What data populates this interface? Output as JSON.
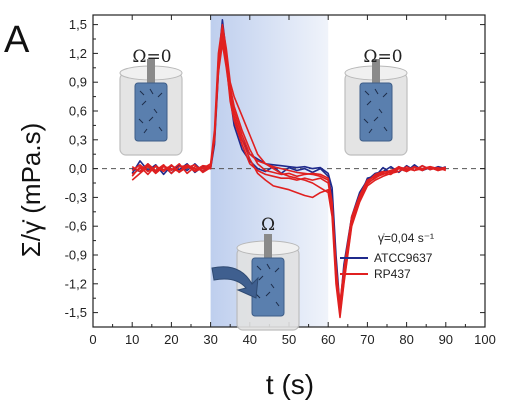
{
  "panel_letter": "A",
  "annotations": {
    "omega_zero_left": "Ω=0",
    "omega_zero_right": "Ω=0",
    "omega_middle": "Ω",
    "shear_rate": "γ̇=0,04 s⁻¹"
  },
  "colors": {
    "ATCC9637": "#1f2a8c",
    "RP437": "#e02020",
    "shaded_band": "#c9d6f0",
    "cylinder_fill": "#d8d8d8",
    "bob_fill": "#5a7fae",
    "arrow": "#3f5f8f"
  },
  "chart_data": {
    "type": "line",
    "xlabel": "t (s)",
    "ylabel": "Σ/γ̇ (mPa.s)",
    "xlim": [
      0,
      100
    ],
    "ylim": [
      -1.65,
      1.6
    ],
    "xticks": [
      0,
      10,
      20,
      30,
      40,
      50,
      60,
      70,
      80,
      90,
      100
    ],
    "xtick_labels": [
      "0",
      "10",
      "20",
      "30",
      "40",
      "50",
      "60",
      "70",
      "80",
      "90",
      "100"
    ],
    "yticks": [
      1.5,
      1.2,
      0.9,
      0.6,
      0.3,
      0.0,
      -0.3,
      -0.6,
      -0.9,
      -1.2,
      -1.5
    ],
    "ytick_labels": [
      "1,5",
      "1,2",
      "0,9",
      "0,6",
      "0,3",
      "0,0",
      "-0,3",
      "-0,6",
      "-0,9",
      "-1,2",
      "-1,5"
    ],
    "shaded_interval": [
      30,
      60
    ],
    "zero_line": true,
    "legend_position": "lower-right",
    "series": [
      {
        "name": "ATCC9637",
        "color": "#1f2a8c",
        "x": [
          10,
          12,
          14,
          16,
          18,
          20,
          22,
          24,
          26,
          28,
          30,
          31,
          32,
          33,
          34,
          35,
          36,
          38,
          40,
          42,
          44,
          46,
          48,
          50,
          52,
          54,
          56,
          58,
          60,
          61,
          62,
          63,
          64,
          66,
          68,
          70,
          72,
          74,
          76,
          78,
          80,
          82,
          84,
          86,
          88,
          90
        ],
        "y": [
          0.0,
          -0.03,
          0.05,
          -0.04,
          0.03,
          -0.05,
          0.04,
          -0.02,
          0.05,
          -0.03,
          0.02,
          0.3,
          1.1,
          1.55,
          1.2,
          0.8,
          0.5,
          0.3,
          0.15,
          0.1,
          0.05,
          0.04,
          0.03,
          0.02,
          0.01,
          0.02,
          0.0,
          0.01,
          -0.05,
          -0.2,
          -0.9,
          -1.45,
          -1.0,
          -0.5,
          -0.25,
          -0.12,
          -0.05,
          -0.03,
          0.02,
          -0.04,
          0.03,
          -0.02,
          0.03,
          -0.01,
          0.02,
          0.0
        ]
      },
      {
        "name": "ATCC9637",
        "color": "#1f2a8c",
        "x": [
          10,
          12,
          14,
          16,
          18,
          20,
          22,
          24,
          26,
          28,
          30,
          31,
          32,
          33,
          34,
          35,
          36,
          38,
          40,
          42,
          44,
          46,
          48,
          50,
          52,
          54,
          56,
          58,
          60,
          61,
          62,
          63,
          64,
          66,
          68,
          70,
          72,
          74,
          76,
          78,
          80,
          82,
          84,
          86,
          88,
          90
        ],
        "y": [
          -0.05,
          0.08,
          -0.02,
          0.04,
          -0.06,
          0.03,
          -0.01,
          0.05,
          -0.04,
          0.02,
          0.0,
          0.25,
          1.0,
          1.45,
          1.15,
          0.75,
          0.45,
          0.2,
          0.08,
          0.0,
          -0.03,
          0.02,
          -0.05,
          0.01,
          -0.02,
          0.0,
          -0.04,
          0.0,
          -0.08,
          -0.3,
          -1.0,
          -1.5,
          -1.1,
          -0.55,
          -0.3,
          -0.1,
          -0.08,
          0.01,
          -0.05,
          0.02,
          -0.03,
          0.04,
          -0.02,
          0.01,
          -0.01,
          0.02
        ]
      },
      {
        "name": "RP437",
        "color": "#e02020",
        "x": [
          10,
          12,
          14,
          16,
          18,
          20,
          22,
          24,
          26,
          28,
          30,
          31,
          32,
          33,
          34,
          35,
          36,
          38,
          40,
          42,
          44,
          46,
          48,
          50,
          52,
          54,
          56,
          58,
          60,
          61,
          62,
          63,
          64,
          66,
          68,
          70,
          72,
          74,
          76,
          78,
          80,
          82,
          84,
          86,
          88,
          90
        ],
        "y": [
          -0.12,
          -0.05,
          0.02,
          -0.04,
          0.03,
          -0.02,
          0.05,
          -0.05,
          0.02,
          0.0,
          0.05,
          0.4,
          1.2,
          1.5,
          1.25,
          0.9,
          0.75,
          0.55,
          0.35,
          0.15,
          0.05,
          0.0,
          -0.05,
          -0.08,
          -0.1,
          -0.12,
          -0.15,
          -0.2,
          -0.25,
          -0.5,
          -1.2,
          -1.55,
          -1.2,
          -0.6,
          -0.35,
          -0.18,
          -0.12,
          -0.08,
          -0.05,
          -0.03,
          0.02,
          -0.02,
          0.0,
          0.01,
          -0.02,
          0.0
        ]
      },
      {
        "name": "RP437",
        "color": "#e02020",
        "x": [
          10,
          12,
          14,
          16,
          18,
          20,
          22,
          24,
          26,
          28,
          30,
          31,
          32,
          33,
          34,
          35,
          36,
          38,
          40,
          42,
          44,
          46,
          48,
          50,
          52,
          54,
          56,
          58,
          60,
          61,
          62,
          63,
          64,
          66,
          68,
          70,
          72,
          74,
          76,
          78,
          80,
          82,
          84,
          86,
          88,
          90
        ],
        "y": [
          -0.08,
          0.02,
          -0.06,
          0.03,
          -0.03,
          0.04,
          -0.04,
          0.02,
          -0.02,
          0.03,
          0.02,
          0.35,
          1.1,
          1.4,
          1.15,
          0.8,
          0.55,
          0.3,
          0.1,
          -0.05,
          -0.12,
          -0.18,
          -0.2,
          -0.22,
          -0.25,
          -0.28,
          -0.3,
          -0.25,
          -0.22,
          -0.45,
          -1.1,
          -1.45,
          -1.1,
          -0.55,
          -0.3,
          -0.15,
          -0.1,
          -0.05,
          -0.06,
          0.0,
          -0.03,
          0.01,
          -0.02,
          0.02,
          0.0,
          0.01
        ]
      },
      {
        "name": "RP437",
        "color": "#e02020",
        "x": [
          10,
          12,
          14,
          16,
          18,
          20,
          22,
          24,
          26,
          28,
          30,
          31,
          32,
          33,
          34,
          35,
          36,
          38,
          40,
          42,
          44,
          46,
          48,
          50,
          52,
          54,
          56,
          58,
          60,
          61,
          62,
          63,
          64,
          66,
          68,
          70,
          72,
          74,
          76,
          78,
          80,
          82,
          84,
          86,
          88,
          90
        ],
        "y": [
          0.02,
          -0.03,
          0.05,
          -0.02,
          0.04,
          -0.05,
          0.02,
          0.03,
          -0.03,
          0.01,
          0.0,
          0.3,
          1.05,
          1.35,
          1.1,
          0.7,
          0.5,
          0.25,
          0.05,
          -0.02,
          -0.06,
          -0.08,
          -0.1,
          -0.1,
          -0.12,
          -0.1,
          -0.12,
          -0.1,
          -0.15,
          -0.4,
          -1.05,
          -1.4,
          -1.05,
          -0.5,
          -0.28,
          -0.12,
          -0.08,
          -0.04,
          -0.02,
          0.01,
          -0.02,
          0.02,
          -0.01,
          0.02,
          -0.01,
          0.0
        ]
      },
      {
        "name": "RP437",
        "color": "#e02020",
        "x": [
          10,
          12,
          14,
          16,
          18,
          20,
          22,
          24,
          26,
          28,
          30,
          31,
          32,
          33,
          34,
          35,
          36,
          38,
          40,
          42,
          44,
          46,
          48,
          50,
          52,
          54,
          56,
          58,
          60,
          61,
          62,
          63,
          64,
          66,
          68,
          70,
          72,
          74,
          76,
          78,
          80,
          82,
          84,
          86,
          88,
          90
        ],
        "y": [
          -0.02,
          0.04,
          -0.03,
          0.02,
          -0.01,
          0.03,
          -0.03,
          0.04,
          0.0,
          -0.02,
          0.03,
          0.3,
          1.15,
          1.45,
          1.2,
          0.85,
          0.65,
          0.4,
          0.2,
          0.05,
          -0.02,
          -0.04,
          -0.06,
          -0.05,
          -0.08,
          -0.06,
          -0.05,
          -0.06,
          -0.1,
          -0.35,
          -1.0,
          -1.5,
          -1.15,
          -0.55,
          -0.3,
          -0.14,
          -0.06,
          -0.03,
          -0.04,
          0.01,
          0.0,
          -0.02,
          0.03,
          -0.01,
          0.01,
          -0.02
        ]
      },
      {
        "name": "RP437",
        "color": "#e02020",
        "x": [
          10,
          12,
          14,
          16,
          18,
          20,
          22,
          24,
          26,
          28,
          30,
          31,
          32,
          33,
          34,
          35,
          36,
          38,
          40,
          42,
          44,
          46,
          48,
          50,
          52,
          54,
          56,
          58,
          60,
          61,
          62,
          63,
          64,
          66,
          68,
          70,
          72,
          74,
          76,
          78,
          80,
          82,
          84,
          86,
          88,
          90
        ],
        "y": [
          -0.06,
          0.0,
          0.03,
          -0.05,
          0.02,
          0.0,
          -0.03,
          0.01,
          0.04,
          -0.04,
          0.01,
          0.32,
          1.0,
          1.3,
          1.05,
          0.75,
          0.6,
          0.35,
          0.15,
          0.08,
          0.05,
          0.02,
          0.0,
          -0.02,
          -0.04,
          -0.05,
          -0.06,
          -0.08,
          -0.12,
          -0.42,
          -1.15,
          -1.52,
          -1.18,
          -0.58,
          -0.32,
          -0.16,
          -0.09,
          -0.06,
          -0.03,
          0.02,
          -0.01,
          0.01,
          0.0,
          0.02,
          -0.02,
          0.01
        ]
      }
    ],
    "legend": [
      {
        "label": "ATCC9637",
        "color": "#1f2a8c"
      },
      {
        "label": "RP437",
        "color": "#e02020"
      }
    ]
  }
}
